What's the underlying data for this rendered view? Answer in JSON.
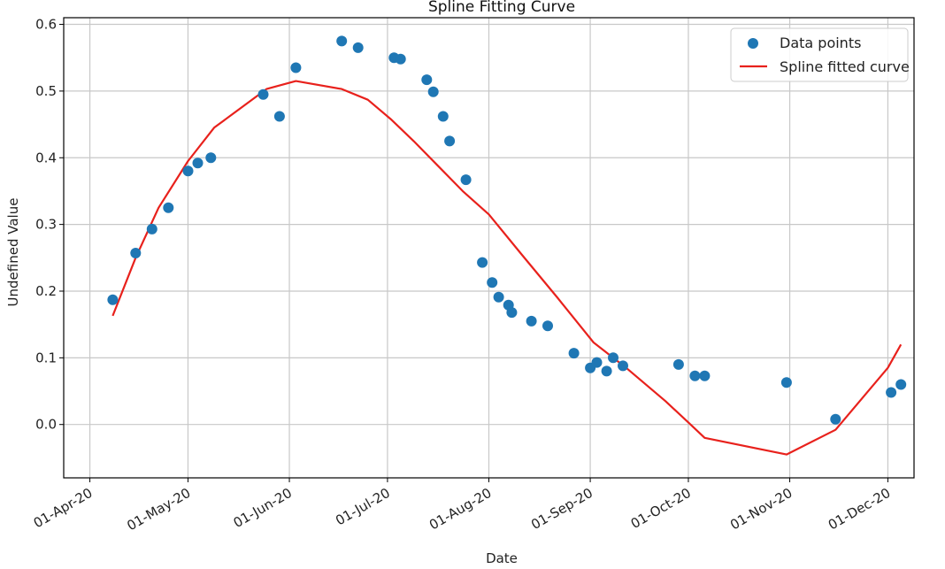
{
  "chart_data": {
    "type": "scatter",
    "title": "Spline Fitting Curve",
    "xlabel": "Date",
    "ylabel": "Undefined Value",
    "x_axis_type": "date",
    "xlim": [
      "2020-03-24",
      "2020-12-09"
    ],
    "ylim": [
      -0.08,
      0.61
    ],
    "x_ticks": [
      {
        "date": "2020-04-01",
        "label": "01-Apr-20"
      },
      {
        "date": "2020-05-01",
        "label": "01-May-20"
      },
      {
        "date": "2020-06-01",
        "label": "01-Jun-20"
      },
      {
        "date": "2020-07-01",
        "label": "01-Jul-20"
      },
      {
        "date": "2020-08-01",
        "label": "01-Aug-20"
      },
      {
        "date": "2020-09-01",
        "label": "01-Sep-20"
      },
      {
        "date": "2020-10-01",
        "label": "01-Oct-20"
      },
      {
        "date": "2020-11-01",
        "label": "01-Nov-20"
      },
      {
        "date": "2020-12-01",
        "label": "01-Dec-20"
      }
    ],
    "y_ticks": [
      {
        "value": 0.0,
        "label": "0.0"
      },
      {
        "value": 0.1,
        "label": "0.1"
      },
      {
        "value": 0.2,
        "label": "0.2"
      },
      {
        "value": 0.3,
        "label": "0.3"
      },
      {
        "value": 0.4,
        "label": "0.4"
      },
      {
        "value": 0.5,
        "label": "0.5"
      },
      {
        "value": 0.6,
        "label": "0.6"
      }
    ],
    "grid": true,
    "legend_position": "top-right",
    "series": [
      {
        "name": "Data points",
        "kind": "scatter",
        "color": "#1f77b4",
        "points": [
          {
            "x": "2020-04-08",
            "y": 0.187
          },
          {
            "x": "2020-04-15",
            "y": 0.257
          },
          {
            "x": "2020-04-20",
            "y": 0.293
          },
          {
            "x": "2020-04-25",
            "y": 0.325
          },
          {
            "x": "2020-05-01",
            "y": 0.38
          },
          {
            "x": "2020-05-04",
            "y": 0.392
          },
          {
            "x": "2020-05-08",
            "y": 0.4
          },
          {
            "x": "2020-05-24",
            "y": 0.495
          },
          {
            "x": "2020-05-29",
            "y": 0.462
          },
          {
            "x": "2020-06-03",
            "y": 0.535
          },
          {
            "x": "2020-06-17",
            "y": 0.575
          },
          {
            "x": "2020-06-22",
            "y": 0.565
          },
          {
            "x": "2020-07-03",
            "y": 0.55
          },
          {
            "x": "2020-07-05",
            "y": 0.548
          },
          {
            "x": "2020-07-13",
            "y": 0.517
          },
          {
            "x": "2020-07-15",
            "y": 0.499
          },
          {
            "x": "2020-07-18",
            "y": 0.462
          },
          {
            "x": "2020-07-20",
            "y": 0.425
          },
          {
            "x": "2020-07-25",
            "y": 0.367
          },
          {
            "x": "2020-07-30",
            "y": 0.243
          },
          {
            "x": "2020-08-02",
            "y": 0.213
          },
          {
            "x": "2020-08-04",
            "y": 0.191
          },
          {
            "x": "2020-08-07",
            "y": 0.179
          },
          {
            "x": "2020-08-08",
            "y": 0.168
          },
          {
            "x": "2020-08-14",
            "y": 0.155
          },
          {
            "x": "2020-08-19",
            "y": 0.148
          },
          {
            "x": "2020-08-27",
            "y": 0.107
          },
          {
            "x": "2020-09-01",
            "y": 0.085
          },
          {
            "x": "2020-09-03",
            "y": 0.093
          },
          {
            "x": "2020-09-06",
            "y": 0.08
          },
          {
            "x": "2020-09-08",
            "y": 0.1
          },
          {
            "x": "2020-09-11",
            "y": 0.088
          },
          {
            "x": "2020-09-28",
            "y": 0.09
          },
          {
            "x": "2020-10-03",
            "y": 0.073
          },
          {
            "x": "2020-10-06",
            "y": 0.073
          },
          {
            "x": "2020-10-31",
            "y": 0.063
          },
          {
            "x": "2020-11-15",
            "y": 0.008
          },
          {
            "x": "2020-12-02",
            "y": 0.048
          },
          {
            "x": "2020-12-05",
            "y": 0.06
          }
        ]
      },
      {
        "name": "Spline fitted curve",
        "kind": "line",
        "color": "#e8211c",
        "points": [
          {
            "x": "2020-04-08",
            "y": 0.163
          },
          {
            "x": "2020-04-15",
            "y": 0.25
          },
          {
            "x": "2020-04-22",
            "y": 0.325
          },
          {
            "x": "2020-05-01",
            "y": 0.395
          },
          {
            "x": "2020-05-09",
            "y": 0.445
          },
          {
            "x": "2020-05-25",
            "y": 0.503
          },
          {
            "x": "2020-06-03",
            "y": 0.515
          },
          {
            "x": "2020-06-17",
            "y": 0.503
          },
          {
            "x": "2020-06-25",
            "y": 0.487
          },
          {
            "x": "2020-07-02",
            "y": 0.458
          },
          {
            "x": "2020-07-09",
            "y": 0.425
          },
          {
            "x": "2020-07-16",
            "y": 0.39
          },
          {
            "x": "2020-07-24",
            "y": 0.35
          },
          {
            "x": "2020-08-01",
            "y": 0.315
          },
          {
            "x": "2020-08-11",
            "y": 0.255
          },
          {
            "x": "2020-08-22",
            "y": 0.19
          },
          {
            "x": "2020-09-02",
            "y": 0.123
          },
          {
            "x": "2020-09-12",
            "y": 0.085
          },
          {
            "x": "2020-09-24",
            "y": 0.035
          },
          {
            "x": "2020-10-01",
            "y": 0.003
          },
          {
            "x": "2020-10-06",
            "y": -0.02
          },
          {
            "x": "2020-10-31",
            "y": -0.045
          },
          {
            "x": "2020-11-15",
            "y": -0.008
          },
          {
            "x": "2020-12-01",
            "y": 0.085
          },
          {
            "x": "2020-12-05",
            "y": 0.12
          }
        ]
      }
    ]
  }
}
